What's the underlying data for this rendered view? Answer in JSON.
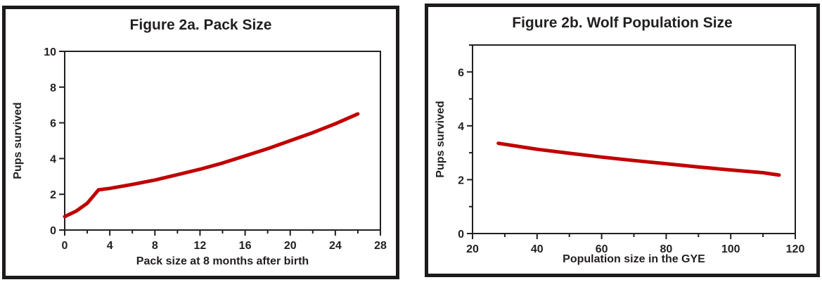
{
  "page": {
    "background": "#ffffff",
    "panel_border_color": "#1d1a1b",
    "text_color": "#231f20"
  },
  "chart_data": [
    {
      "name": "figure-2a",
      "type": "line",
      "title": "Figure 2a. Pack Size",
      "xlabel": "Pack size at 8 months after birth",
      "ylabel": "Pups survived",
      "xlim": [
        0,
        28
      ],
      "ylim": [
        0,
        10
      ],
      "x_major_ticks": [
        0,
        4,
        8,
        12,
        16,
        20,
        24,
        28
      ],
      "x_minor_ticks": [
        2,
        6,
        10,
        14,
        18,
        22,
        26
      ],
      "y_major_ticks": [
        0,
        2,
        4,
        6,
        8,
        10
      ],
      "y_minor_ticks": [],
      "grid": false,
      "legend": "none",
      "axis_color": "#231f20",
      "line_color": "#c00000",
      "line_width": 5,
      "series": [
        {
          "name": "pups-survived-vs-pack-size",
          "points": [
            [
              0,
              0.75
            ],
            [
              1,
              1.05
            ],
            [
              2,
              1.5
            ],
            [
              3,
              2.25
            ],
            [
              4,
              2.33
            ],
            [
              6,
              2.55
            ],
            [
              8,
              2.8
            ],
            [
              10,
              3.1
            ],
            [
              12,
              3.4
            ],
            [
              14,
              3.75
            ],
            [
              16,
              4.15
            ],
            [
              18,
              4.55
            ],
            [
              20,
              5.0
            ],
            [
              22,
              5.45
            ],
            [
              24,
              5.95
            ],
            [
              26,
              6.5
            ]
          ]
        }
      ]
    },
    {
      "name": "figure-2b",
      "type": "line",
      "title": "Figure 2b. Wolf Population Size",
      "xlabel": "Population size in the GYE",
      "ylabel": "Pups survived",
      "xlim": [
        20,
        120
      ],
      "ylim": [
        0,
        7
      ],
      "x_major_ticks": [
        20,
        40,
        60,
        80,
        100,
        120
      ],
      "x_minor_ticks": [
        30,
        50,
        70,
        90,
        110
      ],
      "y_major_ticks": [
        0,
        2,
        4,
        6
      ],
      "y_minor_ticks": [
        1,
        3,
        5,
        7
      ],
      "grid": false,
      "legend": "none",
      "axis_color": "#231f20",
      "line_color": "#c00000",
      "line_width": 5,
      "series": [
        {
          "name": "pups-survived-vs-population-size",
          "points": [
            [
              28,
              3.35
            ],
            [
              40,
              3.13
            ],
            [
              50,
              2.98
            ],
            [
              60,
              2.84
            ],
            [
              70,
              2.71
            ],
            [
              80,
              2.59
            ],
            [
              90,
              2.47
            ],
            [
              100,
              2.36
            ],
            [
              110,
              2.26
            ],
            [
              115,
              2.17
            ]
          ]
        }
      ]
    }
  ]
}
